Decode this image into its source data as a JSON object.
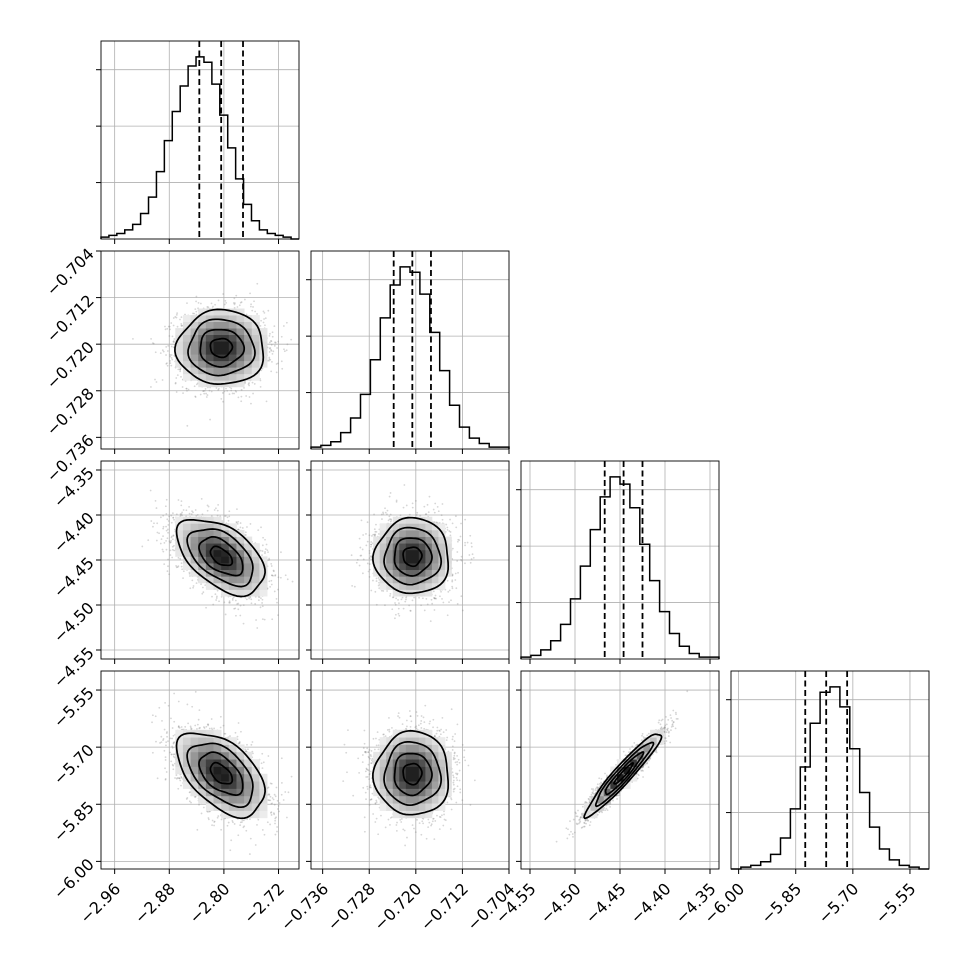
{
  "chart_data": {
    "type": "corner",
    "grid": true,
    "parameters": [
      {
        "median": -2.804,
        "sigma": 0.032,
        "quantiles": [
          -2.836,
          -2.804,
          -2.772
        ],
        "range": [
          -2.98,
          -2.69
        ],
        "ticks": [
          -2.96,
          -2.88,
          -2.8,
          -2.72
        ],
        "tick_labels": [
          "−2.96",
          "−2.88",
          "−2.80",
          "−2.72"
        ],
        "hist_counts": [
          1,
          2,
          3,
          5,
          8,
          14,
          23,
          37,
          54,
          70,
          84,
          95,
          100,
          97,
          85,
          68,
          50,
          33,
          19,
          10,
          5,
          3,
          2,
          1,
          0
        ]
      },
      {
        "median": -0.7206,
        "sigma": 0.0032,
        "quantiles": [
          -0.7238,
          -0.7206,
          -0.7174
        ],
        "range": [
          -0.738,
          -0.704
        ],
        "ticks": [
          -0.736,
          -0.728,
          -0.72,
          -0.712,
          -0.704
        ],
        "tick_labels": [
          "−0.736",
          "−0.728",
          "−0.720",
          "−0.712",
          "−0.704"
        ],
        "hist_counts": [
          1,
          2,
          4,
          9,
          17,
          30,
          49,
          72,
          90,
          100,
          97,
          85,
          64,
          43,
          24,
          12,
          6,
          3,
          1,
          1
        ]
      },
      {
        "median": -4.446,
        "sigma": 0.021,
        "quantiles": [
          -4.467,
          -4.446,
          -4.425
        ],
        "range": [
          -4.56,
          -4.34
        ],
        "ticks": [
          -4.55,
          -4.5,
          -4.45,
          -4.4,
          -4.35
        ],
        "tick_labels": [
          "−4.55",
          "−4.50",
          "−4.45",
          "−4.40",
          "−4.35"
        ],
        "hist_counts": [
          1,
          2,
          5,
          10,
          19,
          33,
          51,
          71,
          89,
          100,
          96,
          83,
          63,
          43,
          26,
          14,
          7,
          3,
          1,
          1
        ]
      },
      {
        "median": -5.77,
        "sigma": 0.055,
        "quantiles": [
          -5.825,
          -5.77,
          -5.715
        ],
        "range": [
          -6.02,
          -5.5
        ],
        "ticks": [
          -6.0,
          -5.85,
          -5.7,
          -5.55
        ],
        "tick_labels": [
          "−6.00",
          "−5.85",
          "−5.70",
          "−5.55"
        ],
        "hist_counts": [
          0,
          1,
          2,
          4,
          8,
          17,
          33,
          56,
          80,
          97,
          100,
          89,
          66,
          42,
          23,
          11,
          5,
          2,
          1,
          0
        ]
      }
    ],
    "panels": [
      {
        "row": 1,
        "col": 0,
        "correlation": 0.0
      },
      {
        "row": 2,
        "col": 0,
        "correlation": -0.5
      },
      {
        "row": 2,
        "col": 1,
        "correlation": 0.0
      },
      {
        "row": 3,
        "col": 0,
        "correlation": -0.5
      },
      {
        "row": 3,
        "col": 1,
        "correlation": 0.0
      },
      {
        "row": 3,
        "col": 2,
        "correlation": 0.95
      }
    ],
    "contour_levels_sigma": [
      0.5,
      1.0,
      1.5,
      2.0
    ]
  }
}
